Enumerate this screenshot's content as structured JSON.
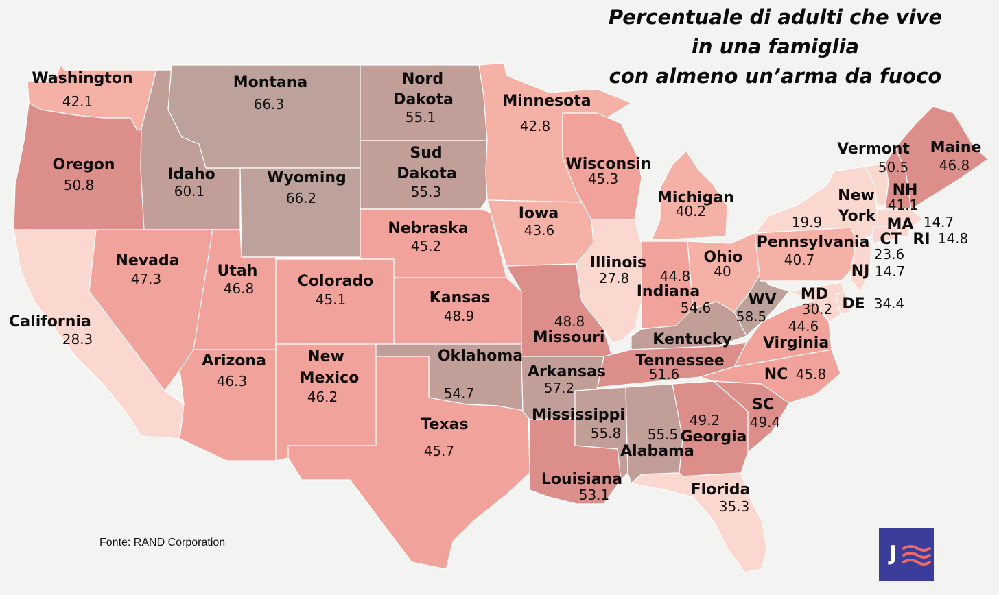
{
  "title": {
    "line1": "Percentuale di adulti che vive",
    "line2": "in una famiglia",
    "line3": "con almeno un’arma da fuoco"
  },
  "source": "Fonte: RAND Corporation",
  "logo_letter": "J",
  "colors": {
    "background": "#f3f3f1",
    "low": "#fad7cf",
    "lowmid": "#f6b1a7",
    "mid": "#f1a29a",
    "midhigh": "#dc8f8a",
    "high": "#c29e98",
    "veryhigh": "#bda19b",
    "logo": "#3a3d9a",
    "logo_waves": "#e86a6a"
  },
  "states": [
    {
      "id": "washington",
      "name": "Washington",
      "value": "42.1"
    },
    {
      "id": "oregon",
      "name": "Oregon",
      "value": "50.8"
    },
    {
      "id": "california",
      "name": "California",
      "value": "28.3"
    },
    {
      "id": "idaho",
      "name": "Idaho",
      "value": "60.1"
    },
    {
      "id": "nevada",
      "name": "Nevada",
      "value": "47.3"
    },
    {
      "id": "montana",
      "name": "Montana",
      "value": "66.3"
    },
    {
      "id": "wyoming",
      "name": "Wyoming",
      "value": "66.2"
    },
    {
      "id": "utah",
      "name": "Utah",
      "value": "46.8"
    },
    {
      "id": "arizona",
      "name": "Arizona",
      "value": "46.3"
    },
    {
      "id": "colorado",
      "name": "Colorado",
      "value": "45.1"
    },
    {
      "id": "new-mexico",
      "name": "New Mexico",
      "value": "46.2"
    },
    {
      "id": "north-dakota",
      "name": "Nord Dakota",
      "value": "55.1"
    },
    {
      "id": "south-dakota",
      "name": "Sud Dakota",
      "value": "55.3"
    },
    {
      "id": "nebraska",
      "name": "Nebraska",
      "value": "45.2"
    },
    {
      "id": "kansas",
      "name": "Kansas",
      "value": "48.9"
    },
    {
      "id": "oklahoma",
      "name": "Oklahoma",
      "value": "54.7"
    },
    {
      "id": "texas",
      "name": "Texas",
      "value": "45.7"
    },
    {
      "id": "minnesota",
      "name": "Minnesota",
      "value": "42.8"
    },
    {
      "id": "iowa",
      "name": "Iowa",
      "value": "43.6"
    },
    {
      "id": "missouri",
      "name": "Missouri",
      "value": "48.8"
    },
    {
      "id": "arkansas",
      "name": "Arkansas",
      "value": "57.2"
    },
    {
      "id": "louisiana",
      "name": "Louisiana",
      "value": "53.1"
    },
    {
      "id": "wisconsin",
      "name": "Wisconsin",
      "value": "45.3"
    },
    {
      "id": "illinois",
      "name": "Illinois",
      "value": "27.8"
    },
    {
      "id": "mississippi",
      "name": "Mississippi",
      "value": "55.8"
    },
    {
      "id": "michigan",
      "name": "Michigan",
      "value": "40.2"
    },
    {
      "id": "indiana",
      "name": "Indiana",
      "value": "44.8"
    },
    {
      "id": "ohio",
      "name": "Ohio",
      "value": "40"
    },
    {
      "id": "kentucky",
      "name": "Kentucky",
      "value": "54.6"
    },
    {
      "id": "tennessee",
      "name": "Tennessee",
      "value": "51.6"
    },
    {
      "id": "alabama",
      "name": "Alabama",
      "value": "55.5"
    },
    {
      "id": "georgia",
      "name": "Georgia",
      "value": "49.2"
    },
    {
      "id": "florida",
      "name": "Florida",
      "value": "35.3"
    },
    {
      "id": "south-carolina",
      "name": "SC",
      "value": "49.4"
    },
    {
      "id": "north-carolina",
      "name": "NC",
      "value": "45.8"
    },
    {
      "id": "virginia",
      "name": "Virginia",
      "value": "44.6"
    },
    {
      "id": "west-virginia",
      "name": "WV",
      "value": "58.5"
    },
    {
      "id": "pennsylvania",
      "name": "Pennsylvania",
      "value": "40.7"
    },
    {
      "id": "new-york",
      "name": "New York",
      "value": "19.9"
    },
    {
      "id": "vermont",
      "name": "Vermont",
      "value": "50.5"
    },
    {
      "id": "new-hampshire",
      "name": "NH",
      "value": "41.1"
    },
    {
      "id": "maine",
      "name": "Maine",
      "value": "46.8"
    },
    {
      "id": "massachusetts",
      "name": "MA",
      "value": "14.7"
    },
    {
      "id": "rhode-island",
      "name": "RI",
      "value": "14.8"
    },
    {
      "id": "connecticut",
      "name": "CT",
      "value": "23.6"
    },
    {
      "id": "new-jersey",
      "name": "NJ",
      "value": "14.7"
    },
    {
      "id": "delaware",
      "name": "DE",
      "value": "34.4"
    },
    {
      "id": "maryland",
      "name": "MD",
      "value": "30.2"
    }
  ]
}
